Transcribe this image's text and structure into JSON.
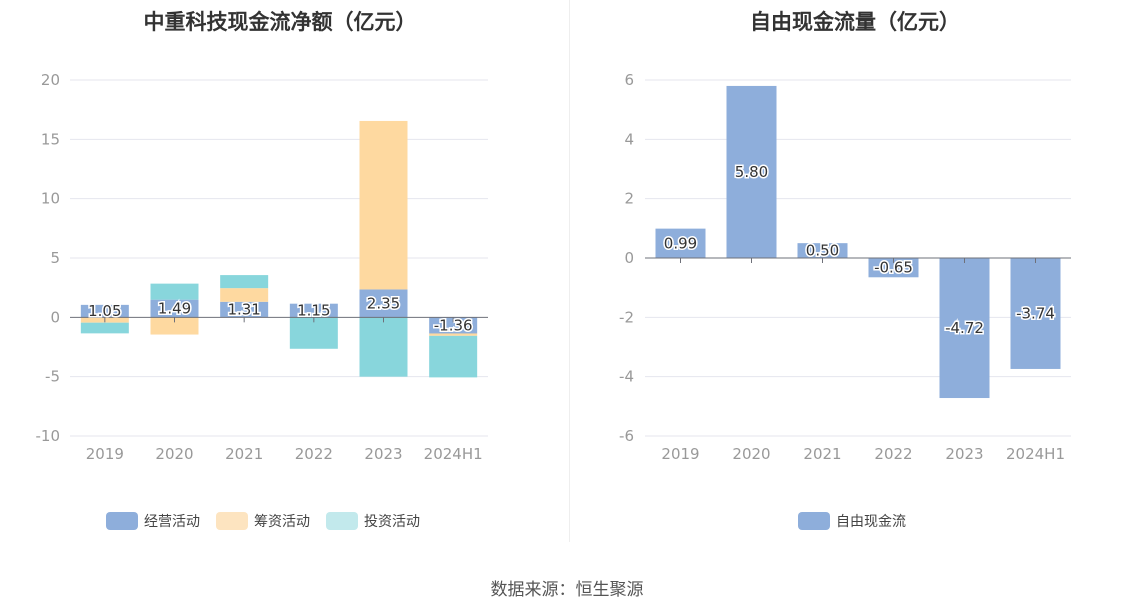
{
  "source": "数据来源：恒生聚源",
  "chart_data": [
    {
      "type": "bar",
      "stacked": true,
      "title": "中重科技现金流净额（亿元）",
      "categories": [
        "2019",
        "2020",
        "2021",
        "2022",
        "2023",
        "2024H1"
      ],
      "ylim": [
        -10,
        20
      ],
      "yticks": [
        20,
        15,
        10,
        5,
        0,
        -5,
        -10
      ],
      "grid": true,
      "legend_position": "bottom",
      "series": [
        {
          "name": "经营活动",
          "color": "#8eaedb",
          "values": [
            1.05,
            1.49,
            1.31,
            1.15,
            2.35,
            -1.36
          ],
          "labels": [
            "1.05",
            "1.49",
            "1.31",
            "1.15",
            "2.35",
            "-1.36"
          ]
        },
        {
          "name": "筹资活动",
          "color": "#fed9a0",
          "values": [
            -0.45,
            -1.45,
            1.15,
            0.0,
            14.2,
            -0.2
          ]
        },
        {
          "name": "投资活动",
          "color": "#88d6dc",
          "values": [
            -0.9,
            1.35,
            1.1,
            -2.65,
            -5.0,
            -3.5
          ]
        }
      ]
    },
    {
      "type": "bar",
      "title": "自由现金流量（亿元）",
      "categories": [
        "2019",
        "2020",
        "2021",
        "2022",
        "2023",
        "2024H1"
      ],
      "ylim": [
        -6,
        6
      ],
      "yticks": [
        6,
        4,
        2,
        0,
        -2,
        -4,
        -6
      ],
      "grid": true,
      "legend_position": "bottom",
      "series": [
        {
          "name": "自由现金流",
          "color": "#8eaedb",
          "values": [
            0.99,
            5.8,
            0.5,
            -0.65,
            -4.72,
            -3.74
          ],
          "labels": [
            "0.99",
            "5.80",
            "0.50",
            "-0.65",
            "-4.72",
            "-3.74"
          ]
        }
      ]
    }
  ]
}
